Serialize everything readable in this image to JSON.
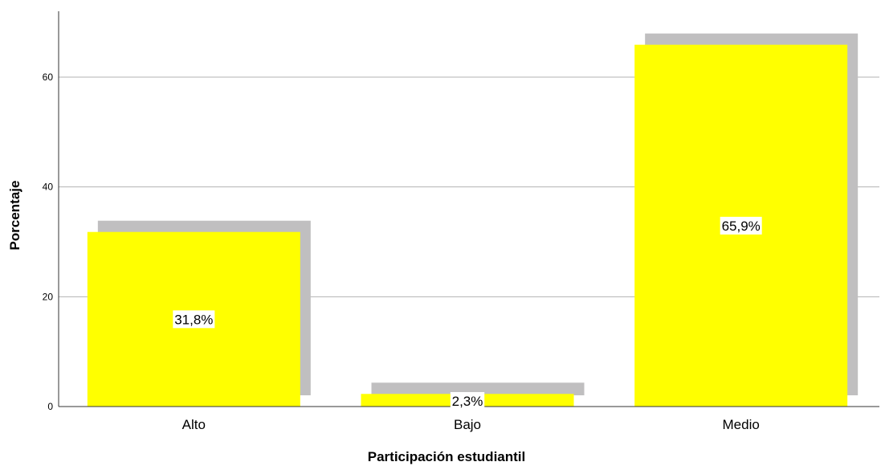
{
  "chart_data": {
    "type": "bar",
    "categories": [
      "Alto",
      "Bajo",
      "Medio"
    ],
    "values": [
      31.8,
      2.3,
      65.9
    ],
    "data_labels": [
      "31,8%",
      "2,3%",
      "65,9%"
    ],
    "xlabel": "Participación estudiantil",
    "ylabel": "Porcentaje",
    "ylim": [
      0,
      72
    ],
    "yticks": [
      0,
      20,
      40,
      60
    ],
    "grid": true,
    "bar_shadow": true,
    "colors": {
      "bar": "#ffff00",
      "shadow": "#c0bfc0",
      "grid": "#b3b3b3",
      "axis": "#333333",
      "label_bg": "#ffffff"
    }
  }
}
